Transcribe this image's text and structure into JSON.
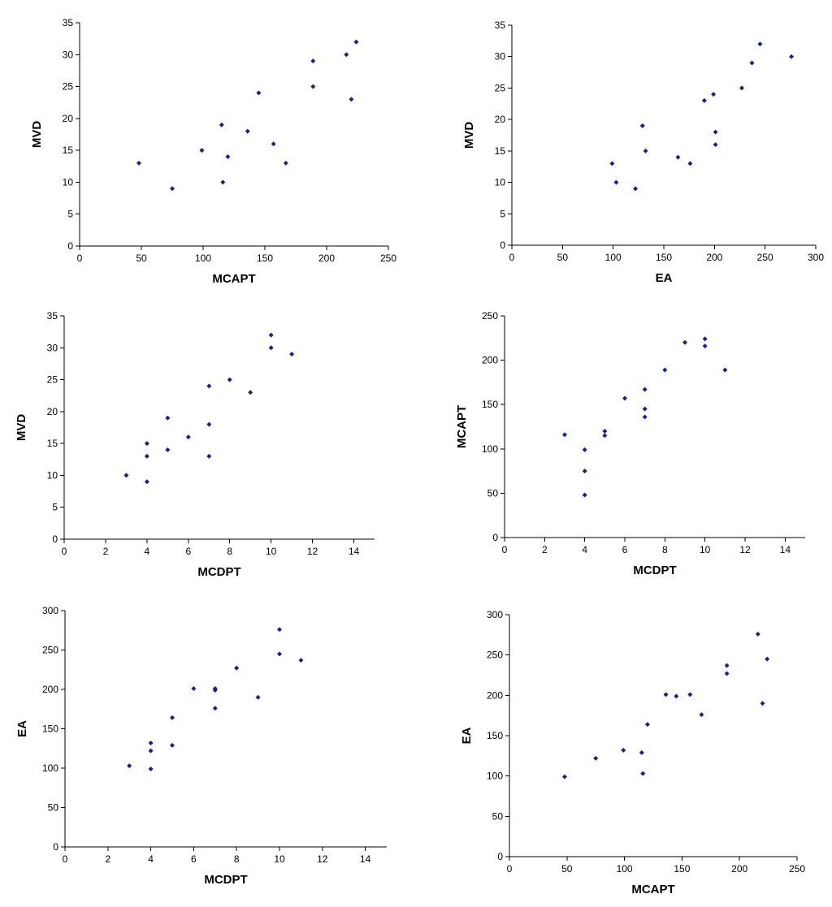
{
  "chart_data": [
    {
      "type": "scatter",
      "xlabel": "MCAPT",
      "ylabel": "MVD",
      "xlim": [
        0,
        250
      ],
      "ylim": [
        0,
        35
      ],
      "xticks": [
        0,
        50,
        100,
        150,
        200,
        250
      ],
      "yticks": [
        0,
        5,
        10,
        15,
        20,
        25,
        30,
        35
      ],
      "grid": false,
      "marker_color": "#1a1f8c",
      "points": [
        {
          "x": 48,
          "y": 13
        },
        {
          "x": 75,
          "y": 9
        },
        {
          "x": 99,
          "y": 15
        },
        {
          "x": 115,
          "y": 19
        },
        {
          "x": 116,
          "y": 10
        },
        {
          "x": 120,
          "y": 14
        },
        {
          "x": 136,
          "y": 18
        },
        {
          "x": 145,
          "y": 24
        },
        {
          "x": 157,
          "y": 16
        },
        {
          "x": 167,
          "y": 13
        },
        {
          "x": 189,
          "y": 29
        },
        {
          "x": 189,
          "y": 25
        },
        {
          "x": 216,
          "y": 30
        },
        {
          "x": 220,
          "y": 23
        },
        {
          "x": 224,
          "y": 32
        }
      ]
    },
    {
      "type": "scatter",
      "xlabel": "EA",
      "ylabel": "MVD",
      "xlim": [
        0,
        300
      ],
      "ylim": [
        0,
        35
      ],
      "xticks": [
        0,
        50,
        100,
        150,
        200,
        250,
        300
      ],
      "yticks": [
        0,
        5,
        10,
        15,
        20,
        25,
        30,
        35
      ],
      "grid": false,
      "marker_color": "#1a1f8c",
      "points": [
        {
          "x": 99,
          "y": 13
        },
        {
          "x": 103,
          "y": 10
        },
        {
          "x": 122,
          "y": 9
        },
        {
          "x": 129,
          "y": 19
        },
        {
          "x": 132,
          "y": 15
        },
        {
          "x": 164,
          "y": 14
        },
        {
          "x": 176,
          "y": 13
        },
        {
          "x": 190,
          "y": 23
        },
        {
          "x": 199,
          "y": 24
        },
        {
          "x": 201,
          "y": 18
        },
        {
          "x": 201,
          "y": 16
        },
        {
          "x": 227,
          "y": 25
        },
        {
          "x": 237,
          "y": 29
        },
        {
          "x": 245,
          "y": 32
        },
        {
          "x": 276,
          "y": 30
        }
      ]
    },
    {
      "type": "scatter",
      "xlabel": "MCDPT",
      "ylabel": "MVD",
      "xlim": [
        0,
        15
      ],
      "ylim": [
        0,
        35
      ],
      "xticks": [
        0,
        2,
        4,
        6,
        8,
        10,
        12,
        14
      ],
      "yticks": [
        0,
        5,
        10,
        15,
        20,
        25,
        30,
        35
      ],
      "grid": false,
      "marker_color": "#1a1f8c",
      "points": [
        {
          "x": 3,
          "y": 10
        },
        {
          "x": 4,
          "y": 9
        },
        {
          "x": 4,
          "y": 13
        },
        {
          "x": 4,
          "y": 15
        },
        {
          "x": 5,
          "y": 14
        },
        {
          "x": 5,
          "y": 19
        },
        {
          "x": 6,
          "y": 16
        },
        {
          "x": 7,
          "y": 13
        },
        {
          "x": 7,
          "y": 18
        },
        {
          "x": 7,
          "y": 24
        },
        {
          "x": 8,
          "y": 25
        },
        {
          "x": 9,
          "y": 23
        },
        {
          "x": 10,
          "y": 30
        },
        {
          "x": 10,
          "y": 32
        },
        {
          "x": 11,
          "y": 29
        }
      ]
    },
    {
      "type": "scatter",
      "xlabel": "MCDPT",
      "ylabel": "MCAPT",
      "xlim": [
        0,
        15
      ],
      "ylim": [
        0,
        250
      ],
      "xticks": [
        0,
        2,
        4,
        6,
        8,
        10,
        12,
        14
      ],
      "yticks": [
        0,
        50,
        100,
        150,
        200,
        250
      ],
      "grid": false,
      "marker_color": "#1a1f8c",
      "points": [
        {
          "x": 3,
          "y": 116
        },
        {
          "x": 4,
          "y": 48
        },
        {
          "x": 4,
          "y": 75
        },
        {
          "x": 4,
          "y": 99
        },
        {
          "x": 5,
          "y": 115
        },
        {
          "x": 5,
          "y": 120
        },
        {
          "x": 6,
          "y": 157
        },
        {
          "x": 7,
          "y": 136
        },
        {
          "x": 7,
          "y": 145
        },
        {
          "x": 7,
          "y": 167
        },
        {
          "x": 8,
          "y": 189
        },
        {
          "x": 9,
          "y": 220
        },
        {
          "x": 10,
          "y": 216
        },
        {
          "x": 10,
          "y": 224
        },
        {
          "x": 11,
          "y": 189
        }
      ]
    },
    {
      "type": "scatter",
      "xlabel": "MCDPT",
      "ylabel": "EA",
      "xlim": [
        0,
        15
      ],
      "ylim": [
        0,
        300
      ],
      "xticks": [
        0,
        2,
        4,
        6,
        8,
        10,
        12,
        14
      ],
      "yticks": [
        0,
        50,
        100,
        150,
        200,
        250,
        300
      ],
      "grid": false,
      "marker_color": "#1a1f8c",
      "points": [
        {
          "x": 3,
          "y": 103
        },
        {
          "x": 4,
          "y": 99
        },
        {
          "x": 4,
          "y": 122
        },
        {
          "x": 4,
          "y": 132
        },
        {
          "x": 5,
          "y": 129
        },
        {
          "x": 5,
          "y": 164
        },
        {
          "x": 6,
          "y": 201
        },
        {
          "x": 7,
          "y": 176
        },
        {
          "x": 7,
          "y": 199
        },
        {
          "x": 7,
          "y": 201
        },
        {
          "x": 8,
          "y": 227
        },
        {
          "x": 9,
          "y": 190
        },
        {
          "x": 10,
          "y": 245
        },
        {
          "x": 10,
          "y": 276
        },
        {
          "x": 11,
          "y": 237
        }
      ]
    },
    {
      "type": "scatter",
      "xlabel": "MCAPT",
      "ylabel": "EA",
      "xlim": [
        0,
        250
      ],
      "ylim": [
        0,
        300
      ],
      "xticks": [
        0,
        50,
        100,
        150,
        200,
        250
      ],
      "yticks": [
        0,
        50,
        100,
        150,
        200,
        250,
        300
      ],
      "grid": false,
      "marker_color": "#1a1f8c",
      "points": [
        {
          "x": 48,
          "y": 99
        },
        {
          "x": 75,
          "y": 122
        },
        {
          "x": 99,
          "y": 132
        },
        {
          "x": 115,
          "y": 129
        },
        {
          "x": 116,
          "y": 103
        },
        {
          "x": 120,
          "y": 164
        },
        {
          "x": 136,
          "y": 201
        },
        {
          "x": 145,
          "y": 199
        },
        {
          "x": 157,
          "y": 201
        },
        {
          "x": 167,
          "y": 176
        },
        {
          "x": 189,
          "y": 227
        },
        {
          "x": 189,
          "y": 237
        },
        {
          "x": 216,
          "y": 276
        },
        {
          "x": 220,
          "y": 190
        },
        {
          "x": 224,
          "y": 245
        }
      ]
    }
  ]
}
